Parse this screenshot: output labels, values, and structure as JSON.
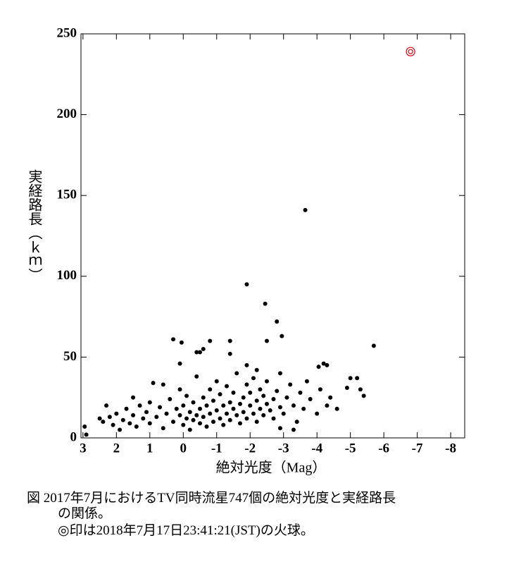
{
  "chart_data": {
    "type": "scatter",
    "x_label": "絶対光度（Mag）",
    "y_label": "実経路長（ｋｍ）",
    "caption": [
      "図 2017年7月におけるTV同時流星747個の絶対光度と実経路長",
      "の関係。",
      "◎印は2018年7月17日23:41:21(JST)の火球。"
    ],
    "xlim": [
      3.06,
      -8.42
    ],
    "ylim": [
      0,
      250
    ],
    "xticks": [
      3,
      2,
      1,
      0,
      -1,
      -2,
      -3,
      -4,
      -5,
      -6,
      -7,
      -8
    ],
    "yticks": [
      0,
      50,
      100,
      150,
      200,
      250
    ],
    "series": [
      {
        "color": "#000000",
        "marker": "dot",
        "x": [
          2.95,
          2.9,
          2.5,
          2.4,
          2.3,
          2.2,
          2.1,
          2.0,
          1.9,
          1.8,
          1.7,
          1.6,
          1.5,
          1.5,
          1.4,
          1.3,
          1.2,
          1.1,
          1.0,
          1.0,
          0.9,
          0.8,
          0.7,
          0.6,
          0.6,
          0.5,
          0.4,
          0.3,
          0.2,
          0.1,
          0.1,
          0.0,
          0.0,
          -0.1,
          -0.1,
          -0.2,
          -0.2,
          -0.3,
          -0.3,
          -0.4,
          -0.4,
          -0.5,
          -0.5,
          -0.6,
          -0.6,
          -0.7,
          -0.7,
          -0.8,
          -0.8,
          -0.9,
          -0.9,
          -1.0,
          -1.0,
          -1.1,
          -1.1,
          -1.2,
          -1.2,
          -1.3,
          -1.3,
          -1.4,
          -1.4,
          -1.5,
          -1.5,
          -1.6,
          -1.6,
          -1.7,
          -1.7,
          -1.8,
          -1.8,
          -1.9,
          -1.9,
          -2.0,
          -2.0,
          -2.1,
          -2.1,
          -2.2,
          -2.2,
          -2.3,
          -2.3,
          -2.4,
          -2.4,
          -2.5,
          -2.5,
          -2.6,
          -2.7,
          -2.7,
          -2.8,
          -2.9,
          -2.9,
          -3.0,
          -3.1,
          -3.2,
          -3.3,
          -3.4,
          -3.5,
          -3.6,
          -3.7,
          -3.8,
          -4.0,
          -4.1,
          -4.3,
          -4.4,
          -4.6,
          -4.9,
          -3.3,
          -2.9,
          -3.65,
          -1.9,
          -2.45,
          -2.8,
          -2.95,
          -5.7,
          0.3,
          0.05,
          -0.6,
          -0.8,
          -1.4,
          -1.4,
          -2.5,
          -4.2,
          -4.3,
          -4.05,
          -5.0,
          -5.2,
          -5.3,
          -5.4,
          -0.4,
          -0.5,
          0.1,
          -1.9,
          -2.2
        ],
        "values": [
          7,
          2,
          12,
          10,
          20,
          13,
          8,
          15,
          5,
          11,
          18,
          9,
          25,
          14,
          7,
          20,
          12,
          16,
          9,
          22,
          34,
          13,
          19,
          6,
          33,
          15,
          24,
          10,
          18,
          14,
          30,
          8,
          20,
          12,
          26,
          16,
          5,
          22,
          11,
          14,
          38,
          9,
          18,
          25,
          13,
          7,
          20,
          15,
          30,
          10,
          23,
          17,
          35,
          12,
          27,
          8,
          20,
          15,
          32,
          22,
          11,
          18,
          28,
          14,
          40,
          21,
          9,
          25,
          16,
          33,
          12,
          20,
          28,
          15,
          37,
          23,
          10,
          18,
          30,
          14,
          26,
          21,
          35,
          17,
          24,
          12,
          29,
          19,
          40,
          15,
          25,
          33,
          20,
          10,
          28,
          18,
          35,
          24,
          15,
          30,
          20,
          25,
          18,
          31,
          5,
          6,
          141,
          95,
          83,
          72,
          63,
          57,
          61,
          59,
          55,
          60,
          60,
          52,
          60,
          46,
          45,
          44,
          37,
          37,
          30,
          26,
          53,
          53,
          46,
          45,
          42
        ]
      },
      {
        "color": "#e0000f",
        "marker": "double-circle",
        "x": [
          -6.8
        ],
        "values": [
          239
        ]
      }
    ]
  }
}
